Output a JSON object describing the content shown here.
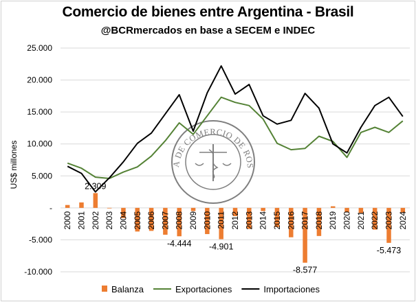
{
  "chart_data": {
    "type": "bar+line",
    "title": "Comercio de bienes entre Argentina - Brasil",
    "subtitle": "@BCRmercados en base a SECEM e INDEC",
    "ylabel": "US$ millones",
    "xlabel": "",
    "ylim": [
      -10000,
      25000
    ],
    "yticks": [
      25000,
      20000,
      15000,
      10000,
      5000,
      0,
      -5000,
      -10000
    ],
    "ytick_labels": [
      "25.000",
      "20.000",
      "15.000",
      "10.000",
      "5.000",
      "-",
      "-5.000",
      "-10.000"
    ],
    "grid": true,
    "legend_position": "bottom",
    "categories": [
      "2000",
      "2001",
      "2002",
      "2003",
      "2004",
      "2005",
      "2006",
      "2007",
      "2008",
      "2009",
      "2010",
      "2011",
      "2012",
      "2013",
      "2014",
      "2015",
      "2016",
      "2017",
      "2018",
      "2019",
      "2020",
      "2021",
      "2022",
      "2023",
      "2024"
    ],
    "series": [
      {
        "name": "Balanza",
        "type": "bar",
        "color": "#ED7D31",
        "values": [
          450,
          850,
          2309,
          -50,
          -1600,
          -3700,
          -3600,
          -4200,
          -4444,
          -500,
          -4100,
          -4901,
          -1300,
          -3300,
          -500,
          -3000,
          -4600,
          -8577,
          -4400,
          250,
          -700,
          -800,
          -3400,
          -5473,
          -700
        ]
      },
      {
        "name": "Exportaciones",
        "type": "line",
        "color": "#548235",
        "values": [
          7000,
          6200,
          4800,
          4600,
          5600,
          6400,
          8100,
          10500,
          13300,
          11500,
          14400,
          17300,
          16500,
          16000,
          13900,
          10100,
          9100,
          9300,
          11200,
          10400,
          7900,
          11800,
          12600,
          11800,
          13600
        ]
      },
      {
        "name": "Importaciones",
        "type": "line",
        "color": "#000000",
        "values": [
          6500,
          5400,
          2500,
          4700,
          7200,
          10100,
          11700,
          14700,
          17700,
          12000,
          18000,
          22200,
          17800,
          19300,
          14400,
          13100,
          13700,
          17900,
          15600,
          10000,
          8600,
          12600,
          16000,
          17300,
          14300
        ]
      }
    ],
    "annotations": [
      {
        "category": "2002",
        "series": "Balanza",
        "text": "2.309"
      },
      {
        "category": "2008",
        "series": "Balanza",
        "text": "-4.444"
      },
      {
        "category": "2011",
        "series": "Balanza",
        "text": "-4.901"
      },
      {
        "category": "2017",
        "series": "Balanza",
        "text": "-8.577"
      },
      {
        "category": "2023",
        "series": "Balanza",
        "text": "-5.473"
      }
    ],
    "watermark": "BOLSA DE COMERCIO DE ROSARIO"
  }
}
